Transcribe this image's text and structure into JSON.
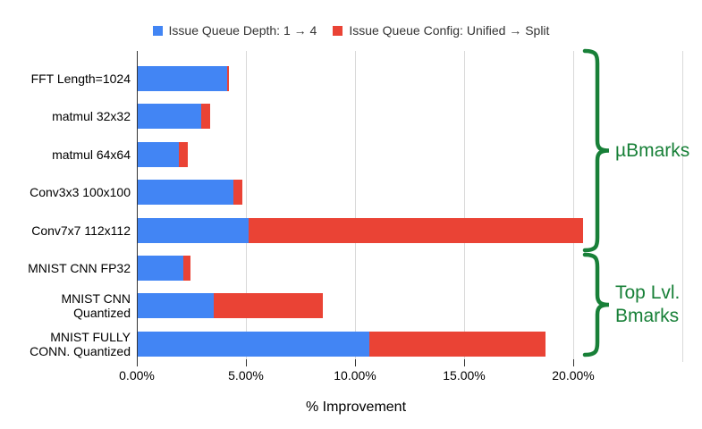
{
  "chart_data": {
    "type": "bar",
    "orientation": "horizontal",
    "stacked": true,
    "title": "",
    "xlabel": "% Improvement",
    "xlim": [
      0,
      25
    ],
    "grid": true,
    "legend_position": "top",
    "x_ticks": [
      {
        "value": 0,
        "label": "0.00%"
      },
      {
        "value": 5,
        "label": "5.00%"
      },
      {
        "value": 10,
        "label": "10.00%"
      },
      {
        "value": 15,
        "label": "15.00%"
      },
      {
        "value": 20,
        "label": "20.00%"
      }
    ],
    "gridline_values": [
      5,
      10,
      15,
      20,
      25
    ],
    "categories": [
      "FFT Length=1024",
      "matmul 32x32",
      "matmul 64x64",
      "Conv3x3 100x100",
      "Conv7x7 112x112",
      "MNIST CNN FP32",
      "MNIST CNN Quantized",
      "MNIST FULLY CONN. Quantized"
    ],
    "category_lines": [
      [
        "FFT Length=1024"
      ],
      [
        "matmul 32x32"
      ],
      [
        "matmul 64x64"
      ],
      [
        "Conv3x3 100x100"
      ],
      [
        "Conv7x7 112x112"
      ],
      [
        "MNIST CNN FP32"
      ],
      [
        "MNIST CNN",
        "Quantized"
      ],
      [
        "MNIST FULLY",
        "CONN. Quantized"
      ]
    ],
    "series": [
      {
        "name": "Issue Queue Depth: 1 → 4",
        "color": "#4285F4",
        "values": [
          4.1,
          2.9,
          1.9,
          4.4,
          5.1,
          2.1,
          3.5,
          10.6
        ]
      },
      {
        "name": "Issue Queue Config: Unified → Split",
        "color": "#EA4335",
        "values": [
          0.1,
          0.4,
          0.4,
          0.4,
          15.3,
          0.3,
          5.0,
          8.1
        ]
      }
    ],
    "groups": [
      {
        "label": "µBmarks",
        "label_lines": [
          "µBmarks"
        ],
        "start_row": 0,
        "end_row": 4,
        "color": "#188038"
      },
      {
        "label": "Top Lvl. Bmarks",
        "label_lines": [
          "Top Lvl.",
          "Bmarks"
        ],
        "start_row": 5,
        "end_row": 7,
        "color": "#188038"
      }
    ]
  },
  "colors": {
    "axis_line": "#333333",
    "gridline": "#d9d9d9",
    "tick_text": "#000000",
    "legend_text": "#333333",
    "group_green": "#188038",
    "series_blue": "#4285F4",
    "series_red": "#EA4335"
  }
}
